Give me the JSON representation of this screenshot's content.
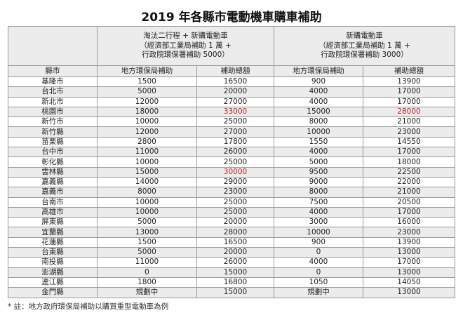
{
  "title": "2019 年各縣市電動機車購車補助",
  "header": {
    "group1": [
      "淘汰二行程 + 新購電動車",
      "（經濟部工業局補助 1 萬 +",
      "行政院環保署補助 5000）"
    ],
    "group2": [
      "新購電動車",
      "（經濟部工業局補助 1 萬 +",
      "行政院環保署補助 3000）"
    ],
    "columns": [
      "縣市",
      "地方環保局補助",
      "補助總額",
      "地方環保局補助",
      "補助總額"
    ]
  },
  "highlight_color": "#c0202a",
  "rows": [
    {
      "county": "基隆市",
      "c1": "1500",
      "c2": "16500",
      "c3": "900",
      "c4": "13900"
    },
    {
      "county": "台北市",
      "c1": "5000",
      "c2": "20000",
      "c3": "4000",
      "c4": "17000"
    },
    {
      "county": "新北市",
      "c1": "12000",
      "c2": "27000",
      "c3": "4000",
      "c4": "17000"
    },
    {
      "county": "桃園市",
      "c1": "18000",
      "c2": "33000",
      "c3": "15000",
      "c4": "28000",
      "red": [
        "c2",
        "c4"
      ]
    },
    {
      "county": "新竹市",
      "c1": "10000",
      "c2": "25000",
      "c3": "8000",
      "c4": "21000"
    },
    {
      "county": "新竹縣",
      "c1": "12000",
      "c2": "27000",
      "c3": "10000",
      "c4": "23000"
    },
    {
      "county": "苗栗縣",
      "c1": "2800",
      "c2": "17800",
      "c3": "1550",
      "c4": "14550"
    },
    {
      "county": "台中市",
      "c1": "11000",
      "c2": "26000",
      "c3": "4000",
      "c4": "17000"
    },
    {
      "county": "彰化縣",
      "c1": "10000",
      "c2": "25000",
      "c3": "5000",
      "c4": "18000"
    },
    {
      "county": "雲林縣",
      "c1": "15000",
      "c2": "30000",
      "c3": "9500",
      "c4": "22500",
      "red": [
        "c2"
      ]
    },
    {
      "county": "嘉義縣",
      "c1": "14000",
      "c2": "29000",
      "c3": "9000",
      "c4": "22000"
    },
    {
      "county": "嘉義市",
      "c1": "8000",
      "c2": "23000",
      "c3": "8000",
      "c4": "21000"
    },
    {
      "county": "台南市",
      "c1": "10000",
      "c2": "25000",
      "c3": "7500",
      "c4": "20500"
    },
    {
      "county": "高雄市",
      "c1": "10000",
      "c2": "25000",
      "c3": "4000",
      "c4": "17000"
    },
    {
      "county": "屏東縣",
      "c1": "5000",
      "c2": "20000",
      "c3": "3000",
      "c4": "16000"
    },
    {
      "county": "宜蘭縣",
      "c1": "13000",
      "c2": "28000",
      "c3": "10000",
      "c4": "23000"
    },
    {
      "county": "花蓮縣",
      "c1": "1500",
      "c2": "16500",
      "c3": "900",
      "c4": "13900"
    },
    {
      "county": "台東縣",
      "c1": "5000",
      "c2": "20000",
      "c3": "0",
      "c4": "13000"
    },
    {
      "county": "南投縣",
      "c1": "11000",
      "c2": "26000",
      "c3": "4000",
      "c4": "17000"
    },
    {
      "county": "澎湖縣",
      "c1": "0",
      "c2": "15000",
      "c3": "0",
      "c4": "13000"
    },
    {
      "county": "連江縣",
      "c1": "1800",
      "c2": "16800",
      "c3": "1050",
      "c4": "14050"
    },
    {
      "county": "金門縣",
      "c1": "規劃中",
      "c2": "15000",
      "c3": "規劃中",
      "c4": "13000"
    }
  ],
  "note": "* 註：地方政府環保局補助以購買重型電動車為例"
}
